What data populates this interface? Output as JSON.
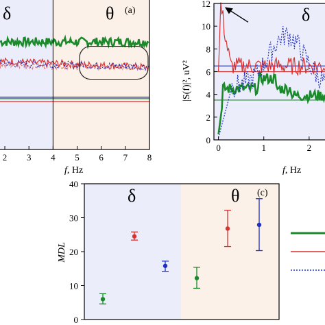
{
  "chart_data": [
    {
      "panel": "a",
      "type": "line",
      "panel_label": "(a)",
      "band_labels": [
        "δ",
        "θ"
      ],
      "xlabel_var": "f",
      "xlabel_unit": ", Hz",
      "x_ticks": [
        "2",
        "3",
        "4",
        "5",
        "6",
        "7",
        "8"
      ],
      "xlim": [
        1.8,
        8
      ],
      "bands": [
        {
          "name": "δ",
          "x": [
            1.8,
            4
          ],
          "color": "#ecedfb"
        },
        {
          "name": "θ",
          "x": [
            4,
            8
          ],
          "color": "#fcf1e8"
        }
      ],
      "series": [
        {
          "color": "#1a8a2a",
          "style": "solid",
          "level": 0.72,
          "noise": 0.03,
          "trend": 0.0
        },
        {
          "color": "#d93030",
          "style": "solid",
          "level": 0.59,
          "noise": 0.025,
          "trend": -0.04
        },
        {
          "color": "#2030c0",
          "style": "dotted",
          "level": 0.575,
          "noise": 0.025,
          "trend": -0.02
        },
        {
          "color": "#e08080",
          "style": "dashed",
          "level": 0.56,
          "noise": 0.02,
          "trend": -0.01
        }
      ],
      "reference_lines": [
        {
          "color": "#1a8a2a",
          "level": 0.34
        },
        {
          "color": "#d93030",
          "level": 0.32
        },
        {
          "color": "#2030c0",
          "level": 0.35
        }
      ],
      "highlight_box": {
        "x": [
          5.1,
          8.0
        ],
        "note": "rounded box"
      }
    },
    {
      "panel": "b",
      "type": "line",
      "band_label": "δ",
      "ylabel": "|S(f)|², uV²",
      "xlabel_var": "f",
      "xlabel_unit": ", Hz",
      "y_ticks": [
        0,
        2,
        4,
        6,
        8,
        10,
        12
      ],
      "ylim": [
        0,
        12
      ],
      "x_ticks": [
        "0",
        "1",
        "2"
      ],
      "xlim": [
        -0.1,
        2.35
      ],
      "background": "#ecedfb",
      "reference_lines": [
        {
          "color": "#1a8a2a",
          "y": 3.5
        },
        {
          "color": "#d93030",
          "y": 6.0
        },
        {
          "color": "#2030c0",
          "y": 6.5
        }
      ],
      "series": [
        {
          "color": "#1a8a2a",
          "style": "solid",
          "start": 0.5,
          "level": 4.5,
          "noise": 0.5
        },
        {
          "color": "#d93030",
          "style": "solid",
          "peak": 11.8,
          "level": 6.5,
          "noise": 0.8
        },
        {
          "color": "#2030c0",
          "style": "dotted",
          "start": 0.2,
          "level": 7.5,
          "noise": 1.0
        }
      ],
      "arrow_target": {
        "x": 0.05,
        "y": 11.8
      }
    },
    {
      "panel": "c",
      "type": "scatter",
      "panel_label": "(c)",
      "band_labels": [
        "δ",
        "θ"
      ],
      "ylabel": "MDL",
      "y_ticks": [
        0,
        10,
        20,
        30,
        40
      ],
      "ylim": [
        0,
        40
      ],
      "bands": [
        {
          "name": "δ",
          "color": "#ecedfb"
        },
        {
          "name": "θ",
          "color": "#fcf1e8"
        }
      ],
      "points": [
        {
          "x": 1,
          "y": 6.0,
          "err_lo": 4.6,
          "err_hi": 7.6,
          "color": "#1a8a2a"
        },
        {
          "x": 2,
          "y": 24.5,
          "err_lo": 23.4,
          "err_hi": 25.8,
          "color": "#d93030"
        },
        {
          "x": 3,
          "y": 15.8,
          "err_lo": 14.2,
          "err_hi": 17.2,
          "color": "#2030c0"
        },
        {
          "x": 4,
          "y": 12.2,
          "err_lo": 9.2,
          "err_hi": 15.4,
          "color": "#1a8a2a"
        },
        {
          "x": 5,
          "y": 26.8,
          "err_lo": 21.5,
          "err_hi": 32.2,
          "color": "#d93030"
        },
        {
          "x": 6,
          "y": 27.9,
          "err_lo": 20.3,
          "err_hi": 35.6,
          "color": "#2030c0"
        }
      ],
      "legend": [
        {
          "color": "#1a8a2a",
          "style": "solid",
          "width": 3
        },
        {
          "color": "#d93030",
          "style": "solid",
          "width": 1.5
        },
        {
          "color": "#2030c0",
          "style": "dotted",
          "width": 1.5
        }
      ]
    }
  ]
}
